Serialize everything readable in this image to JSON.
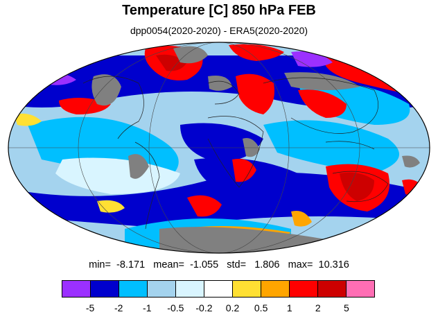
{
  "title": "Temperature [C] 850 hPa FEB",
  "subtitle": "dpp0054(2020-2020) - ERA5(2020-2020)",
  "stats": {
    "min_label": "min=",
    "min": "-8.171",
    "mean_label": "mean=",
    "mean": "-1.055",
    "std_label": "std=",
    "std": "1.806",
    "max_label": "max=",
    "max": "10.316"
  },
  "colorbar": {
    "colors": [
      "#9b30ff",
      "#0000cd",
      "#00bfff",
      "#a4d3ee",
      "#d9f5ff",
      "#ffffff",
      "#ffe033",
      "#ffa500",
      "#ff0000",
      "#cd0000",
      "#ff6eb4"
    ],
    "labels": [
      "-5",
      "-2",
      "-1",
      "-0.5",
      "-0.2",
      "0.2",
      "0.5",
      "1",
      "2",
      "5"
    ]
  },
  "map": {
    "projection": "mollweide",
    "land_missing_color": "#808080"
  }
}
